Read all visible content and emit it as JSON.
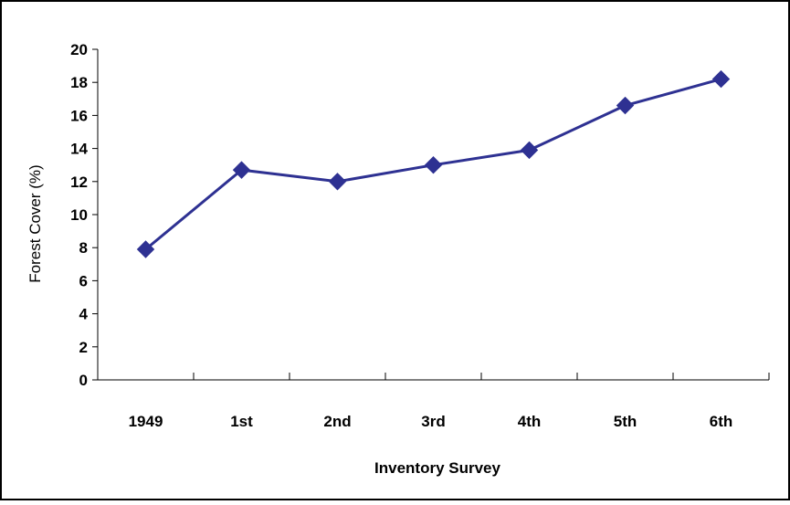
{
  "chart_data": {
    "type": "line",
    "title": "",
    "xlabel": "Inventory Survey",
    "ylabel": "Forest Cover (%)",
    "categories": [
      "1949",
      "1st",
      "2nd",
      "3rd",
      "4th",
      "5th",
      "6th"
    ],
    "series": [
      {
        "values": [
          7.9,
          12.7,
          12.0,
          13.0,
          13.9,
          16.6,
          18.2
        ],
        "color": "#2e3192",
        "marker": "diamond"
      }
    ],
    "ylim": [
      0,
      20
    ],
    "yticks": [
      "0",
      "2",
      "4",
      "6",
      "8",
      "10",
      "12",
      "14",
      "16",
      "18",
      "20"
    ],
    "grid": false,
    "legend": "none"
  }
}
